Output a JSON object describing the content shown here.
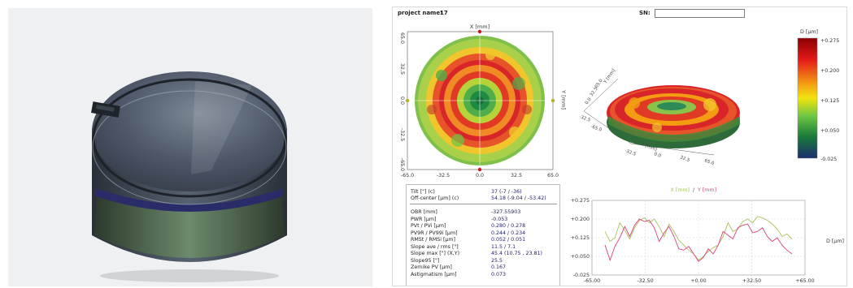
{
  "header": {
    "project_label": "project name:",
    "project_value": "17",
    "sn_label": "SN:",
    "sn_value": ""
  },
  "map2d": {
    "top_axis_label": "X [mm]",
    "right_axis_label": "Y [mm]",
    "x_ticks": [
      "-65.0",
      "-32.5",
      "0.0",
      "32.5",
      "65.0"
    ],
    "y_ticks": [
      "65.0",
      "32.5",
      "0.0",
      "-32.5",
      "-65.0"
    ]
  },
  "map3d": {
    "axis_y_label": "Y [mm]",
    "axis_x_label": "X [mm]",
    "y_ticks": [
      "65.0",
      "32.5",
      "0.0"
    ],
    "x_ticks": [
      "-65.0",
      "-32.5",
      "0.0",
      "32.5",
      "65.0"
    ],
    "left_ticks": [
      "-32.5",
      "-65.0"
    ]
  },
  "colorbar": {
    "title": "D [µm]",
    "ticks": [
      "+0.275",
      "+0.200",
      "+0.125",
      "+0.050",
      "-0.025"
    ],
    "colors": [
      "#8b0000",
      "#e41a1a",
      "#f39c12",
      "#f1e40f",
      "#6cc644",
      "#1a7a3a",
      "#1b2d6e"
    ]
  },
  "stats": {
    "rows_top": [
      {
        "label": "Tilt [\"]  (c)",
        "value": "37 (-7 / -36)"
      },
      {
        "label": "Off-center [µm]  (c)",
        "value": "54.18 (-9.04 / -53.42)"
      }
    ],
    "rows": [
      {
        "label": "OBR [mm]",
        "value": "-327.55903"
      },
      {
        "label": "PWR [µm]",
        "value": "-0.053"
      },
      {
        "label": "PVt / PVi [µm]",
        "value": "0.280 / 0.278"
      },
      {
        "label": "PV9R / PV99i [µm]",
        "value": "0.244 / 0.234"
      },
      {
        "label": "RMSt / RMSi [µm]",
        "value": "0.052 / 0.051"
      },
      {
        "label": "Slope ave / rms [\"]",
        "value": "11.5 / 7.1"
      },
      {
        "label": "Slope max [\"] (X,Y)",
        "value": "45.4 (10.75 , 23.81)"
      },
      {
        "label": "Slope95 [\"]",
        "value": "25.5"
      },
      {
        "label": "Zernike PV [µm]",
        "value": "0.167"
      },
      {
        "label": "Astigmatism [µm]",
        "value": "0.073"
      }
    ]
  },
  "chart_data": {
    "type": "line",
    "title_x": "X [mm]",
    "title_sep": "/",
    "title_y": "Y [mm]",
    "ylabel": "D [µm]",
    "x_ticks": [
      "-65.00",
      "-32.50",
      "+0.00",
      "+32.50",
      "+65.00"
    ],
    "y_ticks": [
      "+0.275",
      "+0.200",
      "+0.125",
      "+0.050",
      "-0.025"
    ],
    "xlim": [
      -65,
      65
    ],
    "ylim": [
      -0.025,
      0.275
    ],
    "series": [
      {
        "name": "X [mm]",
        "color": "#a9c25a",
        "x": [
          -57,
          -54,
          -51,
          -48,
          -45,
          -42,
          -39,
          -36,
          -33,
          -30,
          -27,
          -24,
          -21,
          -18,
          -15,
          -12,
          -9,
          -6,
          -3,
          0,
          3,
          6,
          9,
          12,
          15,
          18,
          21,
          24,
          27,
          30,
          33,
          36,
          39,
          42,
          45,
          48,
          51,
          54,
          57
        ],
        "values": [
          0.15,
          0.11,
          0.125,
          0.185,
          0.155,
          0.12,
          0.165,
          0.195,
          0.205,
          0.185,
          0.2,
          0.17,
          0.13,
          0.18,
          0.15,
          0.115,
          0.095,
          0.075,
          0.06,
          0.035,
          0.05,
          0.07,
          0.085,
          0.095,
          0.13,
          0.185,
          0.15,
          0.16,
          0.19,
          0.2,
          0.185,
          0.21,
          0.205,
          0.195,
          0.18,
          0.16,
          0.13,
          0.14,
          0.12
        ]
      },
      {
        "name": "Y [mm]",
        "color": "#d9407a",
        "x": [
          -57,
          -54,
          -51,
          -48,
          -45,
          -42,
          -39,
          -36,
          -33,
          -30,
          -27,
          -24,
          -21,
          -18,
          -15,
          -12,
          -9,
          -6,
          -3,
          0,
          3,
          6,
          9,
          12,
          15,
          18,
          21,
          24,
          27,
          30,
          33,
          36,
          39,
          42,
          45,
          48,
          51,
          54,
          57
        ],
        "values": [
          0.095,
          0.035,
          0.09,
          0.125,
          0.17,
          0.13,
          0.175,
          0.2,
          0.19,
          0.195,
          0.165,
          0.11,
          0.145,
          0.17,
          0.13,
          0.08,
          0.075,
          0.09,
          0.06,
          0.03,
          0.045,
          0.08,
          0.06,
          0.095,
          0.15,
          0.135,
          0.12,
          0.165,
          0.175,
          0.18,
          0.145,
          0.15,
          0.165,
          0.13,
          0.11,
          0.125,
          0.095,
          0.075,
          0.06
        ]
      }
    ]
  }
}
